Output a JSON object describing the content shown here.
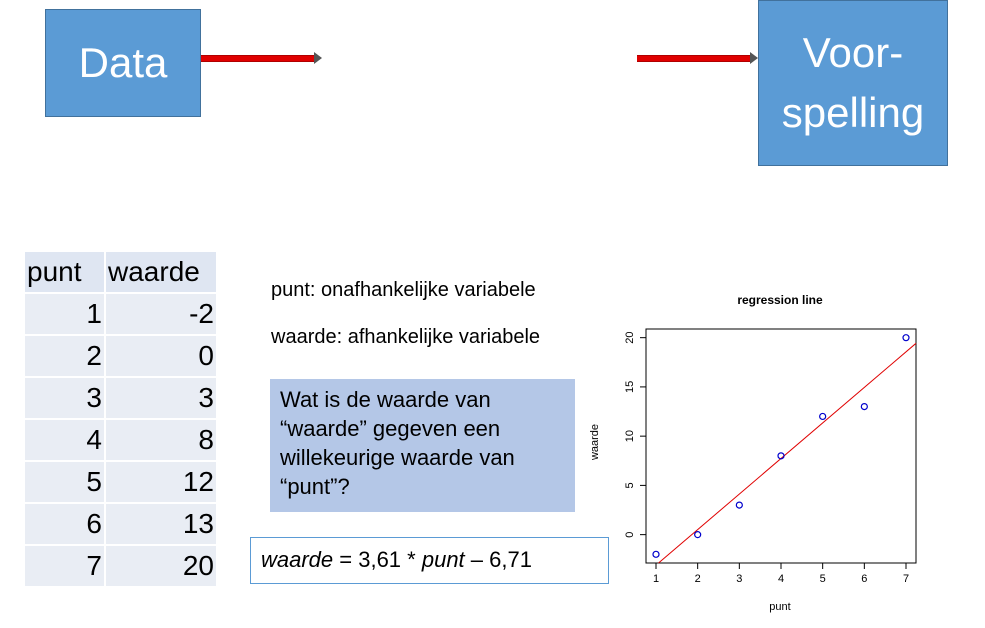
{
  "flow": {
    "data_box": "Data",
    "prediction_box_line1": "Voor-",
    "prediction_box_line2": "spelling"
  },
  "table": {
    "headers": [
      "punt",
      "waarde"
    ],
    "rows": [
      [
        "1",
        "-2"
      ],
      [
        "2",
        "0"
      ],
      [
        "3",
        "3"
      ],
      [
        "4",
        "8"
      ],
      [
        "5",
        "12"
      ],
      [
        "6",
        "13"
      ],
      [
        "7",
        "20"
      ]
    ]
  },
  "labels": {
    "independent": "punt: onafhankelijke variabele",
    "dependent": "waarde: afhankelijke variabele"
  },
  "question": "Wat is de waarde van “waarde” gegeven een willekeurige waarde van “punt”?",
  "formula": {
    "y_var": "waarde",
    "eq_part": " = 3,61 * ",
    "x_var": "punt",
    "tail": " – 6,71"
  },
  "chart_data": {
    "type": "scatter",
    "title": "regression line",
    "xlabel": "punt",
    "ylabel": "waarde",
    "x": [
      1,
      2,
      3,
      4,
      5,
      6,
      7
    ],
    "y": [
      -2,
      0,
      3,
      8,
      12,
      13,
      20
    ],
    "xlim": [
      0.76,
      7.24
    ],
    "ylim": [
      -2.88,
      20.88
    ],
    "xticks": [
      1,
      2,
      3,
      4,
      5,
      6,
      7
    ],
    "yticks": [
      0,
      5,
      10,
      15,
      20
    ],
    "regression": {
      "slope": 3.61,
      "intercept": -6.71
    },
    "point_color": "#0000cc",
    "line_color": "#e00000"
  }
}
